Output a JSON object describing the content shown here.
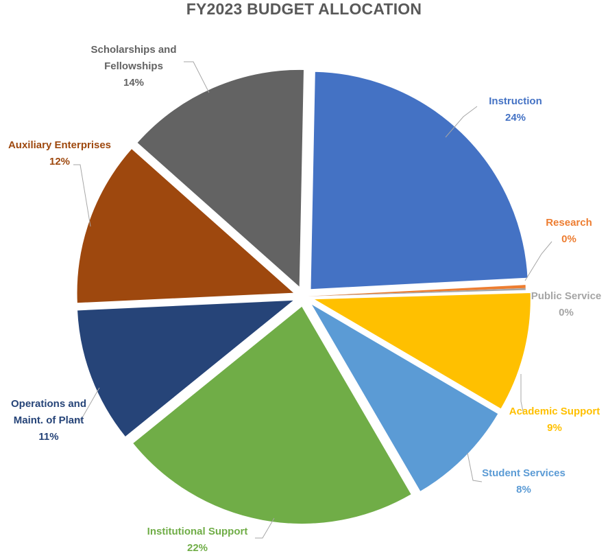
{
  "chart_data": {
    "type": "pie",
    "title": "FY2023 BUDGET ALLOCATION",
    "slices": [
      {
        "name": "Instruction",
        "value": 24,
        "label": "24%",
        "color": "#4472C4"
      },
      {
        "name": "Research",
        "value": 0,
        "label": "0%",
        "color": "#ED7D31"
      },
      {
        "name": "Public Service",
        "value": 0,
        "label": "0%",
        "color": "#A5A5A5"
      },
      {
        "name": "Academic Support",
        "value": 9,
        "label": "9%",
        "color": "#FFC000"
      },
      {
        "name": "Student Services",
        "value": 8,
        "label": "8%",
        "color": "#5B9BD5"
      },
      {
        "name": "Institutional Support",
        "value": 22,
        "label": "22%",
        "color": "#70AD47"
      },
      {
        "name": "Operations and Maint. of Plant",
        "value": 11,
        "label": "11%",
        "color": "#264478"
      },
      {
        "name": "Auxiliary Enterprises",
        "value": 12,
        "label": "12%",
        "color": "#9E480E"
      },
      {
        "name": "Scholarships and Fellowships",
        "value": 14,
        "label": "14%",
        "color": "#636363"
      }
    ],
    "legend": "none",
    "data_labels": "outside-with-leader-lines"
  }
}
